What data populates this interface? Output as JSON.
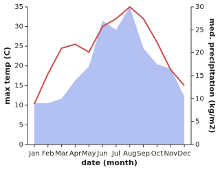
{
  "chart_data": {
    "type": "line",
    "x_label": "date (month)",
    "y_label": "max temp (C)",
    "y2_label": "med. precipitation (kg/m2)",
    "categories": [
      "Jan",
      "Feb",
      "Mar",
      "Apr",
      "May",
      "Jun",
      "Jul",
      "Aug",
      "Sep",
      "Oct",
      "Nov",
      "Dec"
    ],
    "series": [
      {
        "name": "med. precipitation",
        "type": "area",
        "axis": "y2",
        "color": "#b3c0f2",
        "values": [
          9,
          9,
          10,
          14,
          17,
          27,
          25,
          30,
          21,
          17.5,
          16.5,
          10.5
        ]
      },
      {
        "name": "max temp",
        "type": "line",
        "color": "#c8504c",
        "values": [
          10.3,
          18,
          24.5,
          25.5,
          23.5,
          30,
          32,
          35,
          32,
          26,
          19,
          15
        ]
      }
    ],
    "ylim": [
      0,
      35
    ],
    "yticks": [
      0,
      5,
      10,
      15,
      20,
      25,
      30,
      35
    ],
    "y2lim": [
      0,
      30
    ],
    "y2ticks": [
      0,
      5,
      10,
      15,
      20,
      25,
      30
    ]
  }
}
